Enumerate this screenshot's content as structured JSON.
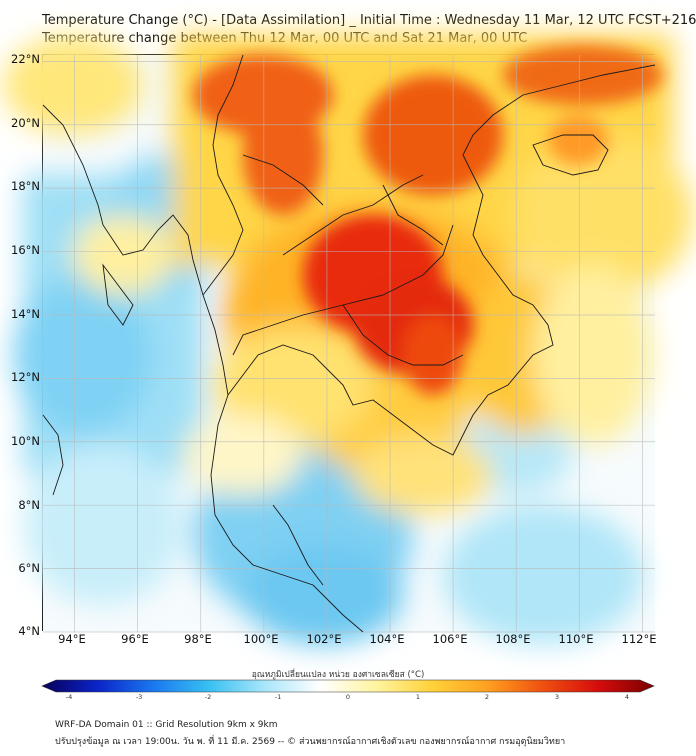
{
  "title": {
    "line1": "Temperature Change (°C) - [Data Assimilation] _ Initial Time : Wednesday 11 Mar, 12 UTC FCST+216",
    "line2": "Temperature change between Thu 12 Mar, 00 UTC and Sat 21 Mar, 00 UTC"
  },
  "map": {
    "lat_labels": [
      "22°N",
      "20°N",
      "18°N",
      "16°N",
      "14°N",
      "12°N",
      "10°N",
      "8°N",
      "6°N",
      "4°N"
    ],
    "lon_labels": [
      "94°E",
      "96°E",
      "98°E",
      "100°E",
      "102°E",
      "104°E",
      "106°E",
      "108°E",
      "110°E",
      "112°E"
    ],
    "lat_range": [
      4,
      22.2
    ],
    "lon_range": [
      93,
      112.4
    ],
    "gridlines": true
  },
  "colorbar": {
    "title": "อุณหภูมิเปลี่ยนแปลง หน่วย องศาเซลเซียส (°C)",
    "ticks": [
      "-4",
      "-3",
      "-2",
      "-1",
      "0",
      "1",
      "2",
      "3",
      "4"
    ],
    "range": [
      -4,
      4
    ],
    "colors": [
      "#08005a",
      "#0a24c8",
      "#1a78f0",
      "#38c0f2",
      "#a8e6fa",
      "#ffffff",
      "#fff4a0",
      "#ffd23a",
      "#ffa020",
      "#f05010",
      "#d40c0c",
      "#7a0000"
    ]
  },
  "footer": {
    "line1": "WRF-DA Domain 01 :: Grid Resolution 9km x 9km",
    "line2": "ปรับปรุงข้อมูล ณ เวลา 19:00น. วัน พ. ที่ 11 มี.ค. 2569 -- © ส่วนพยากรณ์อากาศเชิงตัวเลข กองพยากรณ์อากาศ กรมอุตุนิยมวิทยา"
  }
}
